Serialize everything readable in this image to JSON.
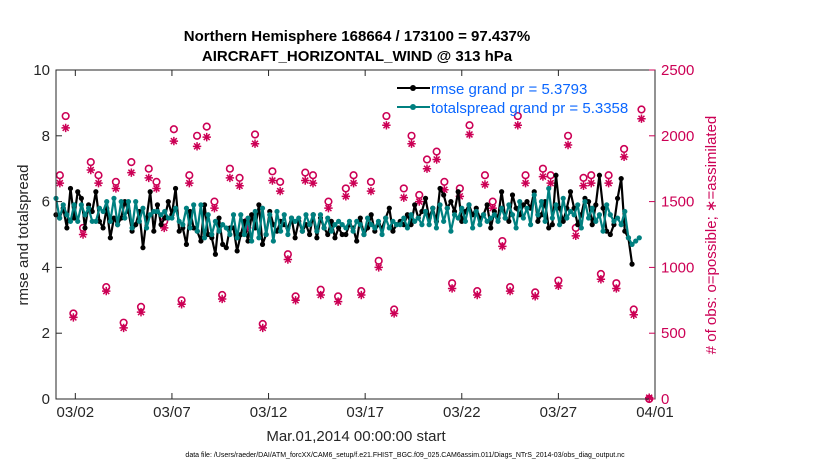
{
  "chart_data": {
    "type": "line",
    "title_line1": "Northern Hemisphere 168664 / 173100 = 97.437%",
    "title_line2": "AIRCRAFT_HORIZONTAL_WIND @ 313 hPa",
    "xlabel": "Mar.01,2014 00:00:00 start",
    "ylabel_left": "rmse and totalspread",
    "ylabel_right": "# of obs: o=possible; ∗=assimilated",
    "footer": "data file: /Users/raeder/DAI/ATM_forcXX/CAM6_setup/f.e21.FHIST_BGC.f09_025.CAM6assim.011/Diags_NTrS_2014-03/obs_diag_output.nc",
    "xlim": [
      0.5,
      31.5
    ],
    "ylim_left": [
      0,
      10
    ],
    "ylim_right": [
      0,
      2500
    ],
    "x_ticks": [
      1.5,
      6.5,
      11.5,
      16.5,
      21.5,
      26.5,
      31.5
    ],
    "x_tick_labels": [
      "03/02",
      "03/07",
      "03/12",
      "03/17",
      "03/22",
      "03/27",
      "04/01"
    ],
    "y_ticks_left": [
      0,
      2,
      4,
      6,
      8,
      10
    ],
    "y_ticks_right": [
      0,
      500,
      1000,
      1500,
      2000,
      2500
    ],
    "grid": false,
    "legend_position": "top-right",
    "colors": {
      "rmse": "#000000",
      "totalspread": "#008080",
      "obs": "#cc0055",
      "legend_text": "#0a66ff",
      "axis": "#262626"
    },
    "series": [
      {
        "name": "rmse grand pr = 5.3793",
        "color": "#000000",
        "marker": "circle",
        "values": [
          5.6,
          5.5,
          5.8,
          5.2,
          6.4,
          5.5,
          6.3,
          6.1,
          5.2,
          5.9,
          5.7,
          6.3,
          5.4,
          5.2,
          5.8,
          4.9,
          5.5,
          5.3,
          5.5,
          6.0,
          5.7,
          5.1,
          5.3,
          5.7,
          4.6,
          5.5,
          6.3,
          5.1,
          5.9,
          5.3,
          5.5,
          6.0,
          5.6,
          6.4,
          5.1,
          5.2,
          4.7,
          5.7,
          5.2,
          5.1,
          4.8,
          5.9,
          5.0,
          4.9,
          4.4,
          5.5,
          4.7,
          4.6,
          5.2,
          5.2,
          4.5,
          5.0,
          5.4,
          4.8,
          5.6,
          5.2,
          5.9,
          4.7,
          5.0,
          5.7,
          5.3,
          5.1,
          5.4,
          5.3,
          5.2,
          5.5,
          4.9,
          5.4,
          5.1,
          5.3,
          5.0,
          5.6,
          4.9,
          5.5,
          5.2,
          5.0,
          5.4,
          4.9,
          5.2,
          5.0,
          5.0,
          5.3,
          5.2,
          4.8,
          5.5,
          5.0,
          5.2,
          5.6,
          5.1,
          5.3,
          5.2,
          5.5,
          5.8,
          5.1,
          5.3,
          5.4,
          5.3,
          5.6,
          5.3,
          5.9,
          5.5,
          5.7,
          6.1,
          5.5,
          5.8,
          5.4,
          6.4,
          6.2,
          5.8,
          6.0,
          5.7,
          6.3,
          5.4,
          5.7,
          5.9,
          5.6,
          5.8,
          5.5,
          5.6,
          5.9,
          5.2,
          5.7,
          5.5,
          6.3,
          5.5,
          5.4,
          6.2,
          5.8,
          5.6,
          5.9,
          6.0,
          5.8,
          6.3,
          5.4,
          5.6,
          6.0,
          5.2,
          5.3,
          6.8,
          5.8,
          5.4,
          5.8,
          6.3,
          5.8,
          5.3,
          5.6,
          6.1,
          6.0,
          5.3,
          5.9,
          6.8,
          5.8,
          5.1,
          5.0,
          5.3,
          6.1,
          6.7,
          5.1,
          4.9,
          4.1
        ],
        "x_first": 0.5,
        "x_step": 0.1875
      },
      {
        "name": "totalspread grand pr = 5.3358",
        "color": "#008080",
        "marker": "circle",
        "values": [
          6.1,
          5.5,
          5.9,
          5.6,
          5.4,
          5.9,
          5.4,
          5.9,
          5.6,
          5.8,
          5.4,
          5.4,
          5.8,
          5.7,
          6.0,
          5.4,
          6.1,
          5.3,
          6.0,
          5.5,
          6.0,
          5.2,
          6.0,
          5.4,
          5.8,
          5.2,
          5.6,
          5.7,
          5.7,
          5.6,
          5.7,
          5.5,
          5.5,
          5.8,
          5.4,
          5.3,
          5.8,
          5.2,
          5.9,
          5.1,
          5.9,
          4.9,
          5.6,
          5.0,
          5.4,
          5.1,
          5.3,
          5.2,
          5.0,
          5.6,
          4.9,
          5.6,
          5.0,
          5.5,
          4.8,
          5.7,
          4.9,
          5.8,
          5.0,
          5.6,
          4.8,
          5.7,
          5.1,
          5.6,
          5.0,
          5.5,
          5.4,
          5.5,
          5.1,
          5.6,
          5.3,
          5.6,
          5.1,
          5.6,
          5.2,
          5.5,
          5.1,
          5.3,
          5.4,
          5.3,
          5.2,
          5.4,
          5.1,
          5.4,
          5.3,
          5.0,
          5.5,
          5.3,
          5.2,
          5.4,
          5.0,
          5.5,
          5.2,
          5.4,
          5.3,
          5.3,
          5.5,
          5.2,
          5.6,
          5.4,
          5.5,
          5.3,
          5.7,
          5.3,
          5.8,
          5.2,
          5.9,
          5.4,
          5.8,
          5.1,
          5.6,
          5.5,
          5.8,
          5.4,
          5.9,
          5.2,
          5.7,
          5.3,
          5.6,
          5.4,
          5.5,
          5.6,
          5.4,
          5.8,
          5.5,
          5.9,
          5.6,
          5.2,
          6.0,
          5.5,
          5.8,
          5.3,
          6.2,
          5.6,
          6.0,
          5.4,
          6.4,
          5.5,
          5.9,
          5.3,
          6.1,
          5.5,
          5.7,
          5.6,
          5.9,
          5.2,
          6.0,
          5.5,
          5.8,
          5.4,
          5.6,
          5.1,
          5.9,
          5.6,
          5.4,
          5.5,
          5.3,
          5.7,
          4.9,
          4.7,
          4.8,
          4.9
        ],
        "x_first": 0.5,
        "x_step": 0.1875
      },
      {
        "name": "obs possible",
        "axis": "right",
        "marker": "o",
        "color": "#cc0055",
        "x": [
          0.7,
          1.0,
          1.4,
          1.9,
          2.3,
          2.7,
          3.1,
          3.6,
          4.0,
          4.4,
          4.9,
          5.3,
          5.7,
          6.1,
          6.6,
          7.0,
          7.4,
          7.8,
          8.3,
          8.7,
          9.1,
          9.5,
          10.0,
          10.4,
          10.8,
          11.2,
          11.7,
          12.1,
          12.5,
          12.9,
          13.4,
          13.8,
          14.2,
          14.6,
          15.1,
          15.5,
          15.9,
          16.3,
          16.8,
          17.2,
          17.6,
          18.0,
          18.5,
          18.9,
          19.3,
          19.7,
          20.2,
          20.6,
          21.0,
          21.4,
          21.9,
          22.3,
          22.7,
          23.1,
          23.6,
          24.0,
          24.4,
          24.8,
          25.3,
          25.7,
          26.1,
          26.5,
          27.0,
          27.4,
          27.8,
          28.2,
          28.7,
          29.1,
          29.5,
          29.9,
          30.4,
          30.8,
          31.2
        ],
        "y": [
          1700,
          2150,
          650,
          1300,
          1800,
          1700,
          850,
          1650,
          580,
          1800,
          700,
          1750,
          1650,
          1350,
          2050,
          750,
          1700,
          2000,
          2070,
          1500,
          790,
          1750,
          1680,
          1350,
          2010,
          570,
          1730,
          1650,
          1100,
          780,
          1720,
          1700,
          830,
          1500,
          780,
          1600,
          1700,
          820,
          1650,
          1050,
          2150,
          680,
          1600,
          2000,
          1550,
          1820,
          1880,
          1650,
          880,
          1600,
          2080,
          820,
          1700,
          1500,
          1200,
          850,
          2150,
          1700,
          810,
          1750,
          1700,
          900,
          2000,
          1300,
          1680,
          1700,
          950,
          1700,
          880,
          1900,
          680,
          2200,
          0
        ],
        "marker_size": 4
      },
      {
        "name": "obs assimilated",
        "axis": "right",
        "marker": "*",
        "color": "#cc0055",
        "x": [
          0.7,
          1.0,
          1.4,
          1.9,
          2.3,
          2.7,
          3.1,
          3.6,
          4.0,
          4.4,
          4.9,
          5.3,
          5.7,
          6.1,
          6.6,
          7.0,
          7.4,
          7.8,
          8.3,
          8.7,
          9.1,
          9.5,
          10.0,
          10.4,
          10.8,
          11.2,
          11.7,
          12.1,
          12.5,
          12.9,
          13.4,
          13.8,
          14.2,
          14.6,
          15.1,
          15.5,
          15.9,
          16.3,
          16.8,
          17.2,
          17.6,
          18.0,
          18.5,
          18.9,
          19.3,
          19.7,
          20.2,
          20.6,
          21.0,
          21.4,
          21.9,
          22.3,
          22.7,
          23.1,
          23.6,
          24.0,
          24.4,
          24.8,
          25.3,
          25.7,
          26.1,
          26.5,
          27.0,
          27.4,
          27.8,
          28.2,
          28.7,
          29.1,
          29.5,
          29.9,
          30.4,
          30.8,
          31.2
        ],
        "y": [
          1640,
          2060,
          620,
          1250,
          1740,
          1640,
          820,
          1600,
          540,
          1720,
          660,
          1680,
          1600,
          1300,
          1960,
          720,
          1640,
          1920,
          1990,
          1450,
          760,
          1680,
          1620,
          1300,
          1940,
          540,
          1660,
          1580,
          1060,
          750,
          1660,
          1640,
          790,
          1450,
          740,
          1540,
          1640,
          790,
          1580,
          1000,
          2080,
          650,
          1530,
          1940,
          1500,
          1750,
          1820,
          1590,
          840,
          1540,
          2010,
          790,
          1630,
          1450,
          1160,
          820,
          2080,
          1640,
          780,
          1690,
          1640,
          860,
          1930,
          1240,
          1620,
          1640,
          910,
          1640,
          840,
          1840,
          640,
          2130,
          10
        ],
        "marker_size": 4
      }
    ]
  }
}
